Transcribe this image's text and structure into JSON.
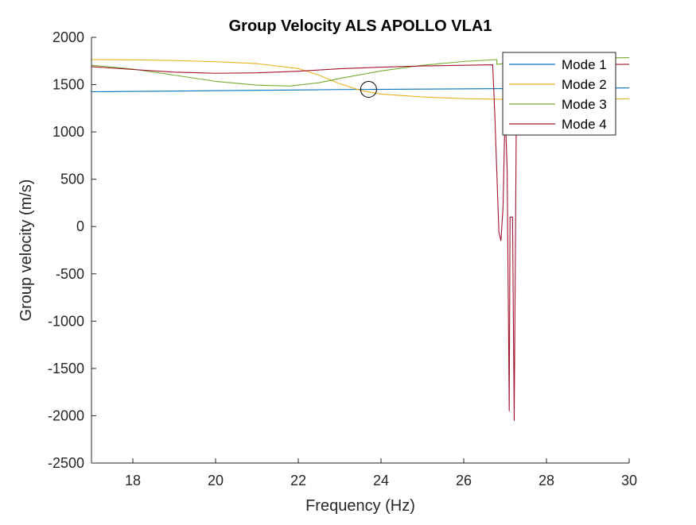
{
  "chart_data": {
    "type": "line",
    "title": "Group Velocity ALS APOLLO VLA1",
    "xlabel": "Frequency (Hz)",
    "ylabel": "Group velocity (m/s)",
    "xlim": [
      17,
      30
    ],
    "ylim": [
      -2500,
      2000
    ],
    "xticks": [
      18,
      20,
      22,
      24,
      26,
      28,
      30
    ],
    "xtick_labels": [
      "18",
      "20",
      "22",
      "24",
      "26",
      "28",
      "30"
    ],
    "yticks": [
      -2500,
      -2000,
      -1500,
      -1000,
      -500,
      0,
      500,
      1000,
      1500,
      2000
    ],
    "ytick_labels": [
      "-2500",
      "-2000",
      "-1500",
      "-1000",
      "-500",
      "0",
      "500",
      "1000",
      "1500",
      "2000"
    ],
    "grid": false,
    "legend_location": "top-right",
    "series": [
      {
        "name": "Mode 1",
        "color": "#0072BD",
        "points": [
          [
            17,
            1425
          ],
          [
            19,
            1432
          ],
          [
            21,
            1440
          ],
          [
            23,
            1448
          ],
          [
            25,
            1453
          ],
          [
            27,
            1458
          ],
          [
            29,
            1462
          ],
          [
            30,
            1465
          ]
        ]
      },
      {
        "name": "Mode 2",
        "color": "#EDB120",
        "points": [
          [
            17,
            1765
          ],
          [
            18,
            1762
          ],
          [
            19,
            1755
          ],
          [
            20,
            1742
          ],
          [
            21,
            1722
          ],
          [
            22,
            1670
          ],
          [
            22.5,
            1600
          ],
          [
            23,
            1510
          ],
          [
            23.5,
            1440
          ],
          [
            24,
            1400
          ],
          [
            25,
            1370
          ],
          [
            26,
            1352
          ],
          [
            27,
            1345
          ],
          [
            28,
            1345
          ],
          [
            29,
            1348
          ],
          [
            30,
            1350
          ]
        ]
      },
      {
        "name": "Mode 3",
        "color": "#77AC30",
        "points": [
          [
            17,
            1705
          ],
          [
            18,
            1665
          ],
          [
            19,
            1600
          ],
          [
            20,
            1535
          ],
          [
            21,
            1495
          ],
          [
            21.8,
            1485
          ],
          [
            22.5,
            1520
          ],
          [
            23,
            1565
          ],
          [
            24,
            1645
          ],
          [
            25,
            1705
          ],
          [
            26,
            1745
          ],
          [
            26.8,
            1765
          ],
          [
            26.8,
            1715
          ],
          [
            28,
            1760
          ],
          [
            29,
            1780
          ],
          [
            30,
            1785
          ]
        ]
      },
      {
        "name": "Mode 4",
        "color": "#A2142F",
        "points": [
          [
            17,
            1690
          ],
          [
            18,
            1660
          ],
          [
            19,
            1632
          ],
          [
            20,
            1620
          ],
          [
            21,
            1625
          ],
          [
            22,
            1642
          ],
          [
            23,
            1668
          ],
          [
            24,
            1685
          ],
          [
            25,
            1697
          ],
          [
            26,
            1705
          ],
          [
            26.7,
            1710
          ],
          [
            26.75,
            1200
          ],
          [
            26.85,
            -60
          ],
          [
            26.9,
            -150
          ],
          [
            26.95,
            200
          ],
          [
            27.0,
            1250
          ],
          [
            27.05,
            600
          ],
          [
            27.1,
            -1950
          ],
          [
            27.12,
            100
          ],
          [
            27.18,
            100
          ],
          [
            27.22,
            -2050
          ],
          [
            27.28,
            1700
          ],
          [
            28,
            1705
          ],
          [
            29,
            1712
          ],
          [
            30,
            1715
          ]
        ]
      }
    ],
    "annotations": [
      {
        "type": "circle-marker",
        "x": 23.7,
        "y": 1450
      }
    ]
  }
}
